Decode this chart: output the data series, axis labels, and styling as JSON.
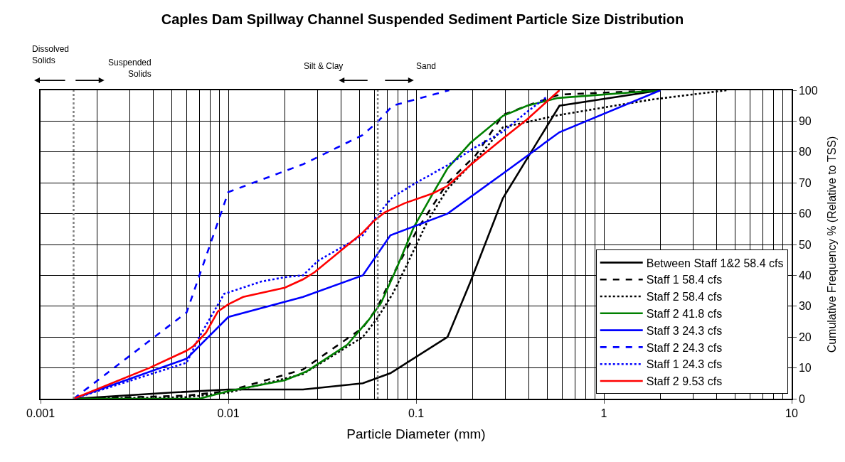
{
  "chart_data": {
    "type": "line",
    "title": "Caples Dam Spillway Channel Suspended Sediment Particle Size Distribution",
    "xlabel": "Particle Diameter (mm)",
    "ylabel": "Cumulative Frequency % (Relative to TSS)",
    "log": "x",
    "xlim": [
      0.001,
      10
    ],
    "xticks": [
      0.001,
      0.01,
      0.1,
      1,
      10
    ],
    "ylim": [
      0,
      100
    ],
    "yticks": [
      0,
      10,
      20,
      30,
      40,
      50,
      60,
      70,
      80,
      90,
      100
    ],
    "grid": true,
    "legend": "bottom right",
    "marker": "none",
    "annotations": [
      "Dissolved\nSolids",
      "Suspended\nSolids",
      "Silt & Clay",
      "Sand"
    ],
    "ref_lines": [
      {
        "axis": "x",
        "value": 0.0015,
        "label": null,
        "color": "#808080",
        "line_style": "dotted"
      },
      {
        "axis": "x",
        "value": 0.0625,
        "label": null,
        "color": "#808080",
        "line_style": "dotted"
      }
    ],
    "series": [
      {
        "name": "Between Staff 1&2 58.4 cfs",
        "color": "#000000",
        "line_style": "solid",
        "x": [
          0.0015,
          0.005,
          0.01,
          0.025,
          0.052,
          0.073,
          0.147,
          0.195,
          0.29,
          0.58,
          2
        ],
        "values": [
          0,
          2,
          3,
          3,
          5,
          8.3,
          20,
          38,
          65,
          95,
          100
        ]
      },
      {
        "name": "Staff 1 58.4 cfs",
        "color": "#000000",
        "line_style": "dashed",
        "x": [
          0.0015,
          0.006,
          0.01,
          0.025,
          0.052,
          0.062,
          0.078,
          0.103,
          0.147,
          0.208,
          0.29,
          0.39,
          0.58,
          2
        ],
        "values": [
          0,
          1,
          2.5,
          9.5,
          23,
          29.5,
          42,
          55.5,
          70,
          79,
          92,
          95,
          98.6,
          100
        ]
      },
      {
        "name": "Staff 2 58.4 cfs",
        "color": "#000000",
        "line_style": "dotted",
        "x": [
          0.0015,
          0.006,
          0.01,
          0.025,
          0.052,
          0.062,
          0.075,
          0.087,
          0.116,
          0.147,
          0.226,
          0.29,
          0.41,
          0.58,
          1.8,
          4.5
        ],
        "values": [
          0,
          0.5,
          2,
          8,
          20,
          26,
          34,
          42,
          58,
          68,
          80,
          88,
          90,
          92,
          97,
          100
        ]
      },
      {
        "name": "Staff 2 41.8 cfs",
        "color": "#008000",
        "line_style": "solid",
        "x": [
          0.0015,
          0.007,
          0.01,
          0.02,
          0.026,
          0.043,
          0.056,
          0.065,
          0.078,
          0.097,
          0.123,
          0.147,
          0.195,
          0.29,
          0.39,
          0.57,
          2
        ],
        "values": [
          0,
          0,
          2.5,
          6,
          8.8,
          17.5,
          25.6,
          31,
          41.7,
          55.5,
          66.6,
          74.7,
          83,
          91.7,
          95,
          97.5,
          100
        ]
      },
      {
        "name": "Staff 3 24.3 cfs",
        "color": "#0000ff",
        "line_style": "solid",
        "x": [
          0.0015,
          0.006,
          0.01,
          0.025,
          0.052,
          0.073,
          0.147,
          0.29,
          0.58,
          2
        ],
        "values": [
          0,
          13,
          26.5,
          33,
          40,
          53,
          60,
          73,
          86.4,
          100
        ]
      },
      {
        "name": "Staff 2 24.3 cfs",
        "color": "#0000ff",
        "line_style": "dashed",
        "x": [
          0.0015,
          0.006,
          0.01,
          0.025,
          0.052,
          0.062,
          0.075,
          0.15
        ],
        "values": [
          0,
          28,
          67,
          76,
          85.5,
          89.6,
          95,
          100
        ]
      },
      {
        "name": "Staff 1 24.3 cfs",
        "color": "#0000ff",
        "line_style": "dotted",
        "x": [
          0.0015,
          0.006,
          0.007,
          0.0095,
          0.015,
          0.02,
          0.025,
          0.03,
          0.052,
          0.062,
          0.075,
          0.1,
          0.15,
          0.2,
          0.29,
          0.39,
          0.5
        ],
        "values": [
          0,
          11.7,
          20,
          34,
          38,
          39.4,
          40,
          44.7,
          53,
          59.4,
          65.4,
          70,
          76,
          81,
          86.6,
          93,
          98
        ]
      },
      {
        "name": "Staff 2 9.53 cfs",
        "color": "#ff0000",
        "line_style": "solid",
        "x": [
          0.0015,
          0.0038,
          0.006,
          0.0065,
          0.0076,
          0.0088,
          0.01,
          0.012,
          0.02,
          0.025,
          0.0288,
          0.0516,
          0.06,
          0.068,
          0.087,
          0.123,
          0.147,
          0.195,
          0.289,
          0.389,
          0.58
        ],
        "values": [
          0,
          10,
          15.6,
          17,
          21.4,
          28.3,
          30.6,
          33,
          36,
          38.7,
          41,
          53.7,
          57.8,
          60.4,
          63.4,
          66.6,
          69,
          75.8,
          84.3,
          90.5,
          100
        ]
      }
    ]
  }
}
